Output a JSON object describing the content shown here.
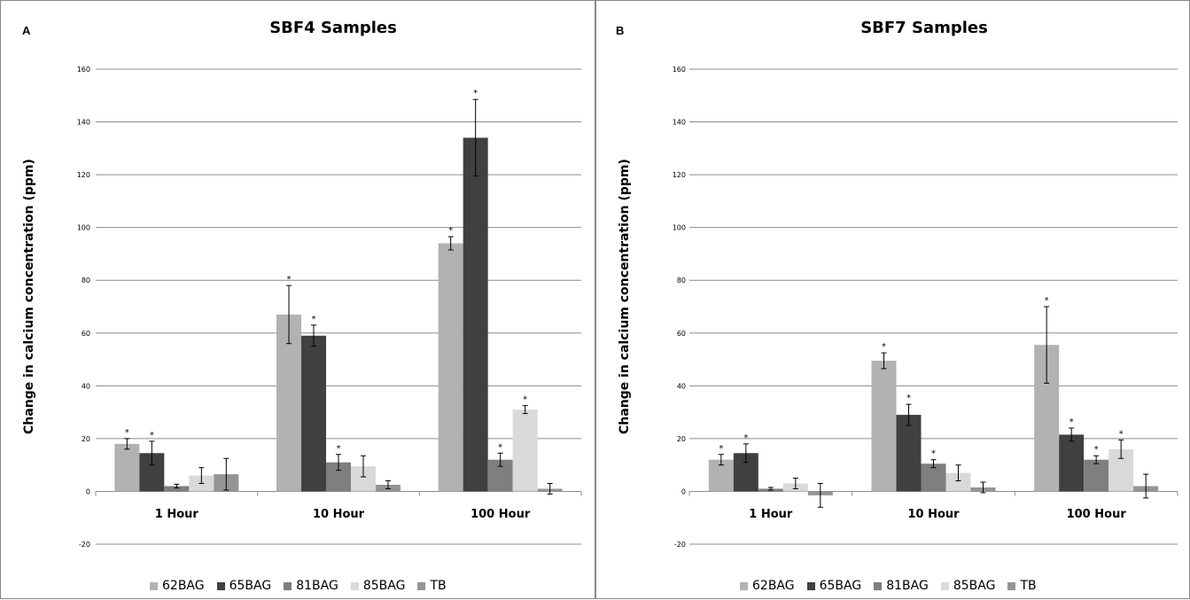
{
  "series_names": [
    "62BAG",
    "65BAG",
    "81BAG",
    "85BAG",
    "TB"
  ],
  "series_colors": [
    "#b2b2b2",
    "#404040",
    "#7f7f7f",
    "#d9d9d9",
    "#959595"
  ],
  "chart_data": [
    {
      "panel_label": "A",
      "type": "bar",
      "title": "SBF4 Samples",
      "ylabel": "Change in calcium concentration (ppm)",
      "xlabel": "",
      "ylim": [
        -20,
        160
      ],
      "yticks": [
        -20,
        0,
        20,
        40,
        60,
        80,
        100,
        120,
        140,
        160
      ],
      "grid": true,
      "legend": "bottom",
      "categories": [
        "1 Hour",
        "10 Hour",
        "100 Hour"
      ],
      "series": [
        {
          "name": "62BAG",
          "values": [
            18,
            67,
            94
          ],
          "errors": [
            2,
            11,
            2.5
          ],
          "significant": [
            true,
            true,
            true
          ]
        },
        {
          "name": "65BAG",
          "values": [
            14.5,
            59,
            134
          ],
          "errors": [
            4.5,
            4,
            14.5
          ],
          "significant": [
            true,
            true,
            true
          ]
        },
        {
          "name": "81BAG",
          "values": [
            2,
            11,
            12
          ],
          "errors": [
            0.7,
            3,
            2.5
          ],
          "significant": [
            false,
            true,
            true
          ]
        },
        {
          "name": "85BAG",
          "values": [
            6,
            9.5,
            31
          ],
          "errors": [
            3,
            4,
            1.5
          ],
          "significant": [
            false,
            false,
            true
          ]
        },
        {
          "name": "TB",
          "values": [
            6.5,
            2.5,
            1
          ],
          "errors": [
            6,
            1.5,
            2
          ],
          "significant": [
            false,
            false,
            false
          ]
        }
      ],
      "annotation_mark": "*"
    },
    {
      "panel_label": "B",
      "type": "bar",
      "title": "SBF7 Samples",
      "ylabel": "Change in calcium concentration (ppm)",
      "xlabel": "",
      "ylim": [
        -20,
        160
      ],
      "yticks": [
        -20,
        0,
        20,
        40,
        60,
        80,
        100,
        120,
        140,
        160
      ],
      "grid": true,
      "legend": "bottom",
      "categories": [
        "1 Hour",
        "10 Hour",
        "100 Hour"
      ],
      "series": [
        {
          "name": "62BAG",
          "values": [
            12,
            49.5,
            55.5
          ],
          "errors": [
            2,
            3,
            14.5
          ],
          "significant": [
            true,
            true,
            true
          ]
        },
        {
          "name": "65BAG",
          "values": [
            14.5,
            29,
            21.5
          ],
          "errors": [
            3.5,
            4,
            2.5
          ],
          "significant": [
            true,
            true,
            true
          ]
        },
        {
          "name": "81BAG",
          "values": [
            1,
            10.5,
            12
          ],
          "errors": [
            0.5,
            1.5,
            1.5
          ],
          "significant": [
            false,
            true,
            true
          ]
        },
        {
          "name": "85BAG",
          "values": [
            3,
            7,
            16
          ],
          "errors": [
            2,
            3,
            3.5
          ],
          "significant": [
            false,
            false,
            true
          ]
        },
        {
          "name": "TB",
          "values": [
            -1.5,
            1.5,
            2
          ],
          "errors": [
            4.5,
            2,
            4.5
          ],
          "significant": [
            false,
            false,
            false
          ]
        }
      ],
      "annotation_mark": "*"
    }
  ]
}
